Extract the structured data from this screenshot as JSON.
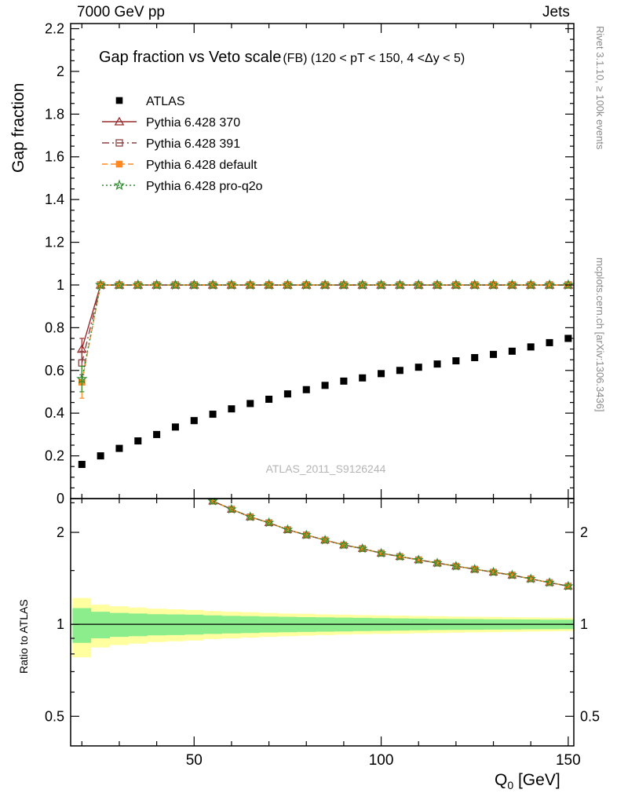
{
  "header": {
    "left": "7000 GeV pp",
    "right": "Jets"
  },
  "title": {
    "main": "Gap fraction vs Veto scale",
    "sub": "(FB) (120 < pT < 150, 4 <Δy < 5)"
  },
  "watermark": "ATLAS_2011_S9126244",
  "side_notes": {
    "top": "Rivet 3.1.10, ≥ 100k events",
    "bottom": "mcplots.cern.ch [arXiv:1306.3436]"
  },
  "axes": {
    "y_main_label": "Gap fraction",
    "y_ratio_label": "Ratio to ATLAS",
    "x_label": "Q",
    "x_label_sub": "0",
    "x_label_unit": " [GeV]"
  },
  "colors": {
    "band_yellow": "#ffffa0",
    "band_green": "#8ced8c",
    "frame": "#000000"
  },
  "chart_data": {
    "type": "line",
    "x_axis": {
      "xlim": [
        17,
        151.5
      ],
      "ticks": [
        50,
        100,
        150
      ],
      "tick_labels": [
        "50",
        "100",
        "150"
      ],
      "minor_step": 10
    },
    "y_main": {
      "ylim": [
        0,
        2.224
      ],
      "ticks": [
        0,
        0.2,
        0.4,
        0.6,
        0.8,
        1,
        1.2,
        1.4,
        1.6,
        1.8,
        2,
        2.2
      ],
      "tick_labels": [
        "0",
        "0.2",
        "0.4",
        "0.6",
        "0.8",
        "1",
        "1.2",
        "1.4",
        "1.6",
        "1.8",
        "2",
        "2.2"
      ],
      "minor_step": 0.05
    },
    "y_ratio": {
      "scale": "log",
      "ylim": [
        0.4,
        2.58
      ],
      "ticks": [
        0.5,
        1,
        2
      ],
      "tick_labels": [
        "0.5",
        "1",
        "2"
      ],
      "minor_ticks": [
        0.6,
        0.7,
        0.8,
        0.9,
        1.5,
        2.5
      ]
    },
    "x": [
      20,
      25,
      30,
      35,
      40,
      45,
      50,
      55,
      60,
      65,
      70,
      75,
      80,
      85,
      90,
      95,
      100,
      105,
      110,
      115,
      120,
      125,
      130,
      135,
      140,
      145,
      150
    ],
    "series": [
      {
        "name": "ATLAS",
        "marker": "filled-square",
        "color": "#000000",
        "line": "none",
        "values": [
          0.16,
          0.2,
          0.235,
          0.27,
          0.3,
          0.335,
          0.365,
          0.395,
          0.42,
          0.445,
          0.465,
          0.49,
          0.51,
          0.53,
          0.55,
          0.565,
          0.585,
          0.6,
          0.615,
          0.63,
          0.645,
          0.66,
          0.675,
          0.69,
          0.71,
          0.73,
          0.75
        ]
      },
      {
        "name": "Pythia 6.428 370",
        "marker": "open-triangle",
        "color": "#9a2b2b",
        "line": "solid",
        "first_err": 0.05,
        "values": [
          0.7,
          1,
          1,
          1,
          1,
          1,
          1,
          1,
          1,
          1,
          1,
          1,
          1,
          1,
          1,
          1,
          1,
          1,
          1,
          1,
          1,
          1,
          1,
          1,
          1,
          1,
          1
        ]
      },
      {
        "name": "Pythia 6.428 391",
        "marker": "open-square",
        "color": "#8b4242",
        "line": "dashdot",
        "first_err": 0.055,
        "values": [
          0.635,
          1,
          1,
          1,
          1,
          1,
          1,
          1,
          1,
          1,
          1,
          1,
          1,
          1,
          1,
          1,
          1,
          1,
          1,
          1,
          1,
          1,
          1,
          1,
          1,
          1,
          1
        ]
      },
      {
        "name": "Pythia 6.428 default",
        "marker": "filled-square",
        "color": "#ff8822",
        "line": "dash",
        "first_err": 0.075,
        "values": [
          0.545,
          1,
          1,
          1,
          1,
          1,
          1,
          1,
          1,
          1,
          1,
          1,
          1,
          1,
          1,
          1,
          1,
          1,
          1,
          1,
          1,
          1,
          1,
          1,
          1,
          1,
          1
        ]
      },
      {
        "name": "Pythia 6.428 pro-q2o",
        "marker": "open-star",
        "color": "#2e8b2e",
        "line": "dot",
        "first_err": 0.06,
        "values": [
          0.56,
          1,
          1,
          1,
          1,
          1,
          1,
          1,
          1,
          1,
          1,
          1,
          1,
          1,
          1,
          1,
          1,
          1,
          1,
          1,
          1,
          1,
          1,
          1,
          1,
          1,
          1
        ]
      }
    ],
    "ratio_band": {
      "yellow_halfwidth": [
        0.22,
        0.16,
        0.145,
        0.135,
        0.125,
        0.12,
        0.115,
        0.105,
        0.1,
        0.095,
        0.09,
        0.085,
        0.082,
        0.078,
        0.075,
        0.072,
        0.07,
        0.068,
        0.065,
        0.063,
        0.061,
        0.059,
        0.057,
        0.055,
        0.053,
        0.051,
        0.05
      ],
      "green_halfwidth": [
        0.13,
        0.1,
        0.09,
        0.085,
        0.08,
        0.078,
        0.075,
        0.07,
        0.066,
        0.063,
        0.06,
        0.058,
        0.056,
        0.054,
        0.052,
        0.05,
        0.048,
        0.046,
        0.044,
        0.042,
        0.041,
        0.04,
        0.039,
        0.038,
        0.037,
        0.036,
        0.035
      ]
    }
  }
}
